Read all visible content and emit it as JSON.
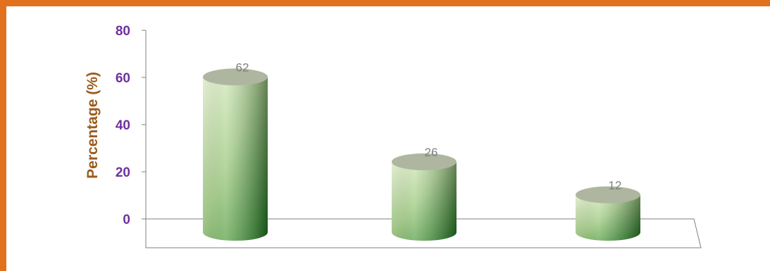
{
  "colors": {
    "frame": "#E2711D",
    "tick_labels": "#7030A0",
    "axis_title": "#9C5B1D",
    "data_labels": "#7F7F7F",
    "axis_line": "#7F7F7F",
    "bar_light": "#F1FADF",
    "bar_mid": "#A9D08E",
    "bar_dark": "#1E7B1E",
    "bar_top": "#AEB6A0"
  },
  "chart_data": {
    "type": "bar",
    "style": "3d-cylinder",
    "categories": [
      "",
      "",
      ""
    ],
    "values": [
      62,
      26,
      12
    ],
    "data_labels": [
      "62",
      "26",
      "12"
    ],
    "ylabel": "Percentage (%)",
    "ylim": [
      0,
      80
    ],
    "yticks": [
      "0",
      "20",
      "40",
      "60",
      "80"
    ],
    "grid": false,
    "legend": "none"
  }
}
